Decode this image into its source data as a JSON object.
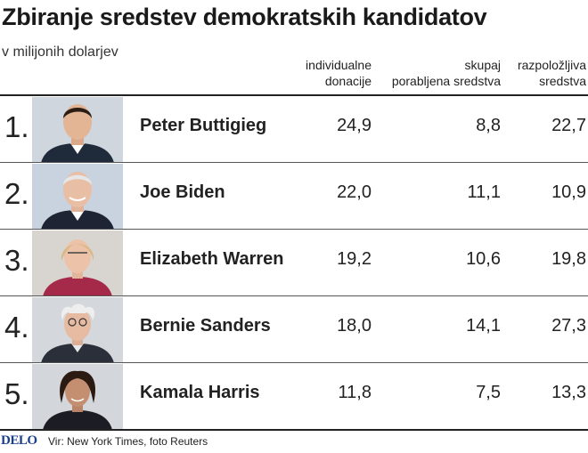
{
  "header": {
    "title": "Zbiranje sredstev demokratskih kandidatov",
    "subtitle": "v milijonih dolarjev"
  },
  "chart_data": {
    "type": "table",
    "columns": [
      {
        "line1": "individualne",
        "line2": "donacije"
      },
      {
        "line1": "skupaj",
        "line2": "porabljena sredstva"
      },
      {
        "line1": "razpoložljiva",
        "line2": "sredstva"
      }
    ],
    "rows": [
      {
        "rank": "1.",
        "name": "Peter Buttigieg",
        "values": [
          "24,9",
          "8,8",
          "22,7"
        ]
      },
      {
        "rank": "2.",
        "name": "Joe Biden",
        "values": [
          "22,0",
          "11,1",
          "10,9"
        ]
      },
      {
        "rank": "3.",
        "name": "Elizabeth Warren",
        "values": [
          "19,2",
          "10,6",
          "19,8"
        ]
      },
      {
        "rank": "4.",
        "name": "Bernie Sanders",
        "values": [
          "18,0",
          "14,1",
          "27,3"
        ]
      },
      {
        "rank": "5.",
        "name": "Kamala Harris",
        "values": [
          "11,8",
          "7,5",
          "13,3"
        ]
      }
    ]
  },
  "footer": {
    "logo": "DELO",
    "source": "Vir: New York Times, foto Reuters"
  },
  "colors": {
    "photo_background": "#d9dde3",
    "logo": "#1b3f8f"
  }
}
